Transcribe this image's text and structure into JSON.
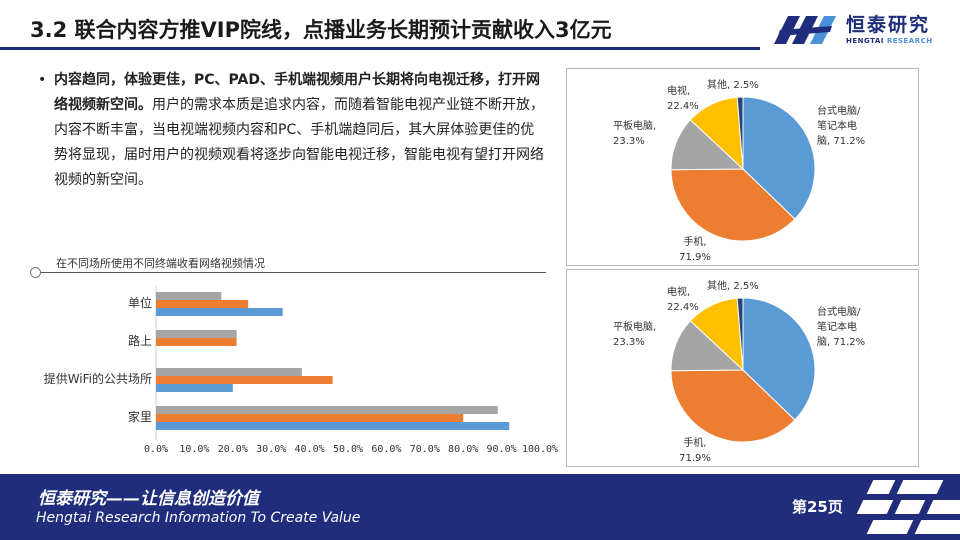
{
  "header": {
    "title": "3.2 联合内容方推VIP院线，点播业务长期预计贡献收入3亿元"
  },
  "logo": {
    "name_cn": "恒泰研究",
    "name_en_a": "HENGTAI",
    "name_en_b": "RESEARCH",
    "brand_color": "#1f2d7c"
  },
  "bullet": {
    "marker": "•",
    "bold": "内容趋同，体验更佳，PC、PAD、手机端视频用户长期将向电视迁移，打开网络视频新空间。",
    "body": "用户的需求本质是追求内容，而随着智能电视产业链不断开放，内容不断丰富，当电视端视频内容和PC、手机端趋同后，其大屏体验更佳的优势将显现，届时用户的视频观看将逐步向智能电视迁移，智能电视有望打开网络视频的新空间。"
  },
  "bar_section": {
    "title": "在不同场所使用不同终端收看网络视频情况"
  },
  "chart_data": [
    {
      "type": "bar",
      "orientation": "horizontal",
      "title": "在不同场所使用不同终端收看网络视频情况",
      "categories": [
        "单位",
        "路上",
        "提供WiFi的公共场所",
        "家里"
      ],
      "series": [
        {
          "color": "#a5a5a5",
          "values": [
            17,
            21,
            38,
            89
          ]
        },
        {
          "color": "#ed7d31",
          "values": [
            24,
            21,
            46,
            80
          ]
        },
        {
          "color": "#5b9bd5",
          "values": [
            33,
            0,
            20,
            92
          ]
        }
      ],
      "xlim": [
        0,
        100
      ],
      "xticks": [
        "0.0%",
        "10.0%",
        "20.0%",
        "30.0%",
        "40.0%",
        "50.0%",
        "60.0%",
        "70.0%",
        "80.0%",
        "90.0%",
        "100.0%"
      ],
      "grid": false,
      "legend": "none"
    },
    {
      "type": "pie",
      "start_angle": "top, clockwise",
      "slices": [
        {
          "label": "台式电脑/笔记本电脑",
          "pct_label": "71.2%",
          "value": 37.4,
          "color": "#5b9bd5"
        },
        {
          "label": "手机",
          "pct_label": "71.9%",
          "value": 37.8,
          "color": "#ed7d31"
        },
        {
          "label": "平板电脑",
          "pct_label": "23.3%",
          "value": 12.2,
          "color": "#a5a5a5"
        },
        {
          "label": "电视",
          "pct_label": "22.4%",
          "value": 11.8,
          "color": "#ffc000"
        },
        {
          "label": "其他",
          "pct_label": "2.5%",
          "value": 1.3,
          "color": "#264478"
        }
      ]
    },
    {
      "type": "pie",
      "start_angle": "top, clockwise",
      "slices": [
        {
          "label": "台式电脑/笔记本电脑",
          "pct_label": "71.2%",
          "value": 37.4,
          "color": "#5b9bd5"
        },
        {
          "label": "手机",
          "pct_label": "71.9%",
          "value": 37.8,
          "color": "#ed7d31"
        },
        {
          "label": "平板电脑",
          "pct_label": "23.3%",
          "value": 12.2,
          "color": "#a5a5a5"
        },
        {
          "label": "电视",
          "pct_label": "22.4%",
          "value": 11.8,
          "color": "#ffc000"
        },
        {
          "label": "其他",
          "pct_label": "2.5%",
          "value": 1.3,
          "color": "#264478"
        }
      ]
    }
  ],
  "footer": {
    "slogan_cn": "恒泰研究——让信息创造价值",
    "slogan_en": "Hengtai Research Information To Create Value",
    "page": "第25页"
  }
}
